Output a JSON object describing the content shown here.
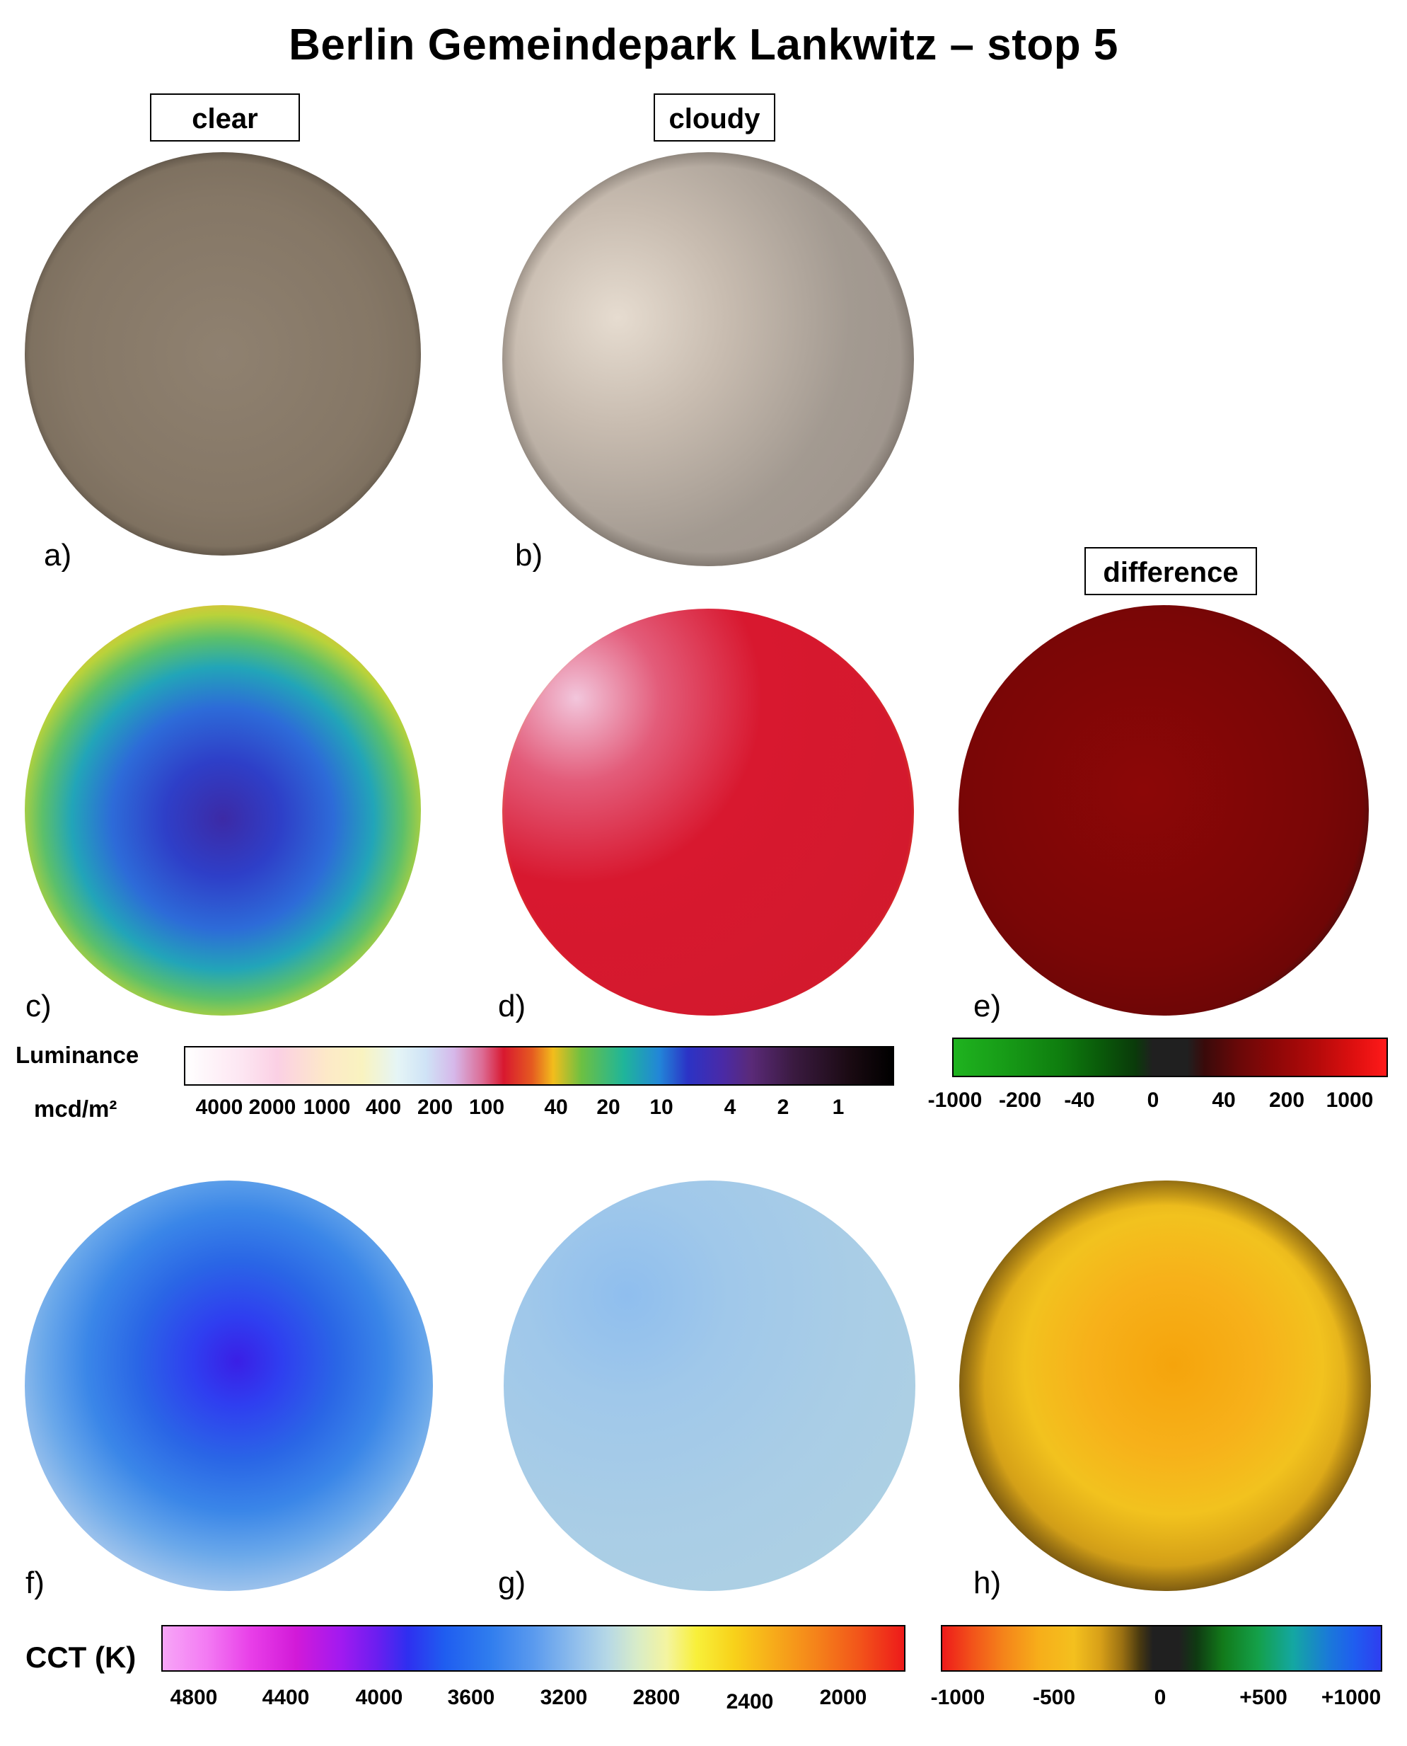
{
  "title": "Berlin Gemeindepark Lankwitz – stop 5",
  "headers": {
    "clear": "clear",
    "cloudy": "cloudy",
    "difference": "difference"
  },
  "panels": [
    "a)",
    "b)",
    "c)",
    "d)",
    "e)",
    "f)",
    "g)",
    "h)"
  ],
  "luminance_scale": {
    "label": "Luminance",
    "unit": "mcd/m²",
    "ticks": [
      "4000",
      "2000",
      "1000",
      "400",
      "200",
      "100",
      "40",
      "20",
      "10",
      "4",
      "2",
      "1"
    ]
  },
  "difference_luminance_scale": {
    "ticks": [
      "-1000",
      "-200",
      "-40",
      "0",
      "40",
      "200",
      "1000"
    ]
  },
  "cct_scale": {
    "label": "CCT (K)",
    "ticks": [
      "4800",
      "4400",
      "4000",
      "3600",
      "3200",
      "2800",
      "2400",
      "2000"
    ]
  },
  "difference_cct_scale": {
    "ticks": [
      "-1000",
      "-500",
      "0",
      "+500",
      "+1000"
    ]
  },
  "colors": {
    "sky_clear": "#8a7b6b",
    "sky_cloudy": "#b9ada1",
    "luminance_clear_center": "#3a34c4",
    "luminance_cloudy": "#d8182f",
    "difference_red": "#8c0707",
    "cct_clear_center": "#3a1fe6",
    "cct_cloudy": "#a9cde6",
    "cct_diff_center": "#f5a40c"
  }
}
